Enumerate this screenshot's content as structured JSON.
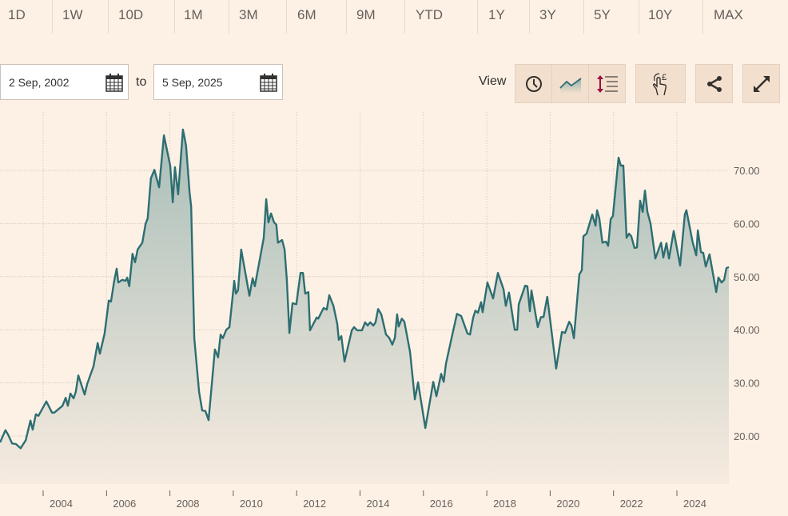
{
  "range_tabs": [
    "1D",
    "1W",
    "10D",
    "1M",
    "3M",
    "6M",
    "9M",
    "YTD",
    "1Y",
    "3Y",
    "5Y",
    "10Y",
    "MAX"
  ],
  "date_range": {
    "from": "2 Sep, 2002",
    "to_label": "to",
    "to": "5 Sep, 2025"
  },
  "toolbar": {
    "view_label": "View",
    "icons": [
      "clock-icon",
      "line-chart-icon",
      "scale-arrows-icon",
      "hand-pound-icon",
      "share-icon",
      "expand-icon"
    ]
  },
  "colors": {
    "background": "#fdf1e5",
    "line": "#2d6e72",
    "fill_top": "#a6bdb7",
    "button": "#f2dfcd"
  },
  "chart_data": {
    "type": "area",
    "xlabel": "",
    "ylabel": "",
    "xlim": [
      2002.64,
      2025.68
    ],
    "ylim": [
      11,
      80
    ],
    "grid": true,
    "y_axis_position": "right",
    "x_ticks": [
      "2004",
      "2006",
      "2008",
      "2010",
      "2012",
      "2014",
      "2016",
      "2018",
      "2020",
      "2022",
      "2024"
    ],
    "y_ticks": [
      "20.00",
      "30.00",
      "40.00",
      "50.00",
      "60.00",
      "70.00"
    ],
    "series": [
      {
        "x": [
          2002.64,
          2002.81,
          2002.89,
          2003.02,
          2003.14,
          2003.29,
          2003.45,
          2003.6,
          2003.67,
          2003.77,
          2003.85,
          2004.1,
          2004.28,
          2004.35,
          2004.61,
          2004.71,
          2004.78,
          2004.86,
          2004.96,
          2005.03,
          2005.11,
          2005.31,
          2005.39,
          2005.59,
          2005.72,
          2005.79,
          2005.94,
          2006.07,
          2006.14,
          2006.24,
          2006.32,
          2006.37,
          2006.5,
          2006.6,
          2006.65,
          2006.72,
          2006.82,
          2006.9,
          2006.98,
          2007.13,
          2007.23,
          2007.3,
          2007.4,
          2007.51,
          2007.66,
          2007.81,
          2008.01,
          2008.09,
          2008.16,
          2008.26,
          2008.41,
          2008.51,
          2008.62,
          2008.67,
          2008.77,
          2008.92,
          2009.02,
          2009.12,
          2009.22,
          2009.42,
          2009.52,
          2009.6,
          2009.67,
          2009.78,
          2009.88,
          2010.03,
          2010.08,
          2010.15,
          2010.25,
          2010.51,
          2010.61,
          2010.68,
          2010.96,
          2011.04,
          2011.11,
          2011.19,
          2011.29,
          2011.36,
          2011.41,
          2011.54,
          2011.62,
          2011.69,
          2011.77,
          2011.87,
          2011.99,
          2012.12,
          2012.2,
          2012.27,
          2012.37,
          2012.42,
          2012.63,
          2012.68,
          2012.85,
          2012.95,
          2013.03,
          2013.16,
          2013.28,
          2013.33,
          2013.41,
          2013.51,
          2013.74,
          2013.81,
          2013.91,
          2014.06,
          2014.16,
          2014.24,
          2014.32,
          2014.42,
          2014.49,
          2014.57,
          2014.67,
          2014.82,
          2014.92,
          2015.02,
          2015.1,
          2015.17,
          2015.22,
          2015.32,
          2015.4,
          2015.58,
          2015.73,
          2015.83,
          2016.06,
          2016.18,
          2016.31,
          2016.41,
          2016.56,
          2016.64,
          2016.71,
          2016.89,
          2017.06,
          2017.19,
          2017.39,
          2017.47,
          2017.57,
          2017.64,
          2017.72,
          2017.82,
          2017.87,
          2018.02,
          2018.2,
          2018.35,
          2018.53,
          2018.6,
          2018.7,
          2018.88,
          2018.96,
          2019.01,
          2019.21,
          2019.28,
          2019.36,
          2019.41,
          2019.61,
          2019.71,
          2019.79,
          2019.91,
          2020.19,
          2020.37,
          2020.47,
          2020.6,
          2020.67,
          2020.75,
          2020.92,
          2021.0,
          2021.05,
          2021.15,
          2021.33,
          2021.43,
          2021.48,
          2021.55,
          2021.65,
          2021.76,
          2021.83,
          2021.91,
          2021.98,
          2022.16,
          2022.23,
          2022.31,
          2022.41,
          2022.49,
          2022.56,
          2022.66,
          2022.74,
          2022.84,
          2022.92,
          2022.99,
          2023.07,
          2023.17,
          2023.32,
          2023.5,
          2023.57,
          2023.67,
          2023.75,
          2023.9,
          2024.1,
          2024.25,
          2024.3,
          2024.5,
          2024.61,
          2024.66,
          2024.76,
          2024.83,
          2024.91,
          2025.03,
          2025.24,
          2025.31,
          2025.41,
          2025.49,
          2025.56,
          2025.64
        ],
        "y": [
          18.8,
          21.1,
          20.3,
          18.6,
          18.5,
          17.7,
          19.2,
          22.9,
          21.2,
          24.1,
          23.8,
          26.5,
          24.4,
          24.4,
          25.7,
          27.2,
          25.7,
          28.0,
          27.1,
          28.3,
          31.4,
          27.8,
          29.8,
          33.1,
          37.5,
          35.5,
          39.3,
          45.5,
          45.3,
          49.1,
          51.5,
          48.9,
          49.4,
          49.2,
          49.8,
          48.2,
          54.3,
          52.7,
          55.1,
          56.4,
          59.9,
          61.0,
          68.5,
          70.1,
          66.8,
          76.6,
          70.9,
          64.0,
          70.6,
          65.5,
          77.7,
          74.7,
          65.9,
          63.2,
          38.4,
          28.3,
          24.8,
          24.7,
          23.0,
          36.3,
          34.8,
          39.1,
          38.4,
          40.0,
          40.5,
          49.2,
          46.8,
          47.4,
          55.1,
          46.4,
          49.7,
          48.2,
          57.3,
          64.6,
          60.2,
          61.9,
          60.2,
          59.8,
          56.4,
          56.9,
          55.1,
          49.4,
          39.4,
          45.0,
          44.8,
          50.7,
          50.7,
          46.8,
          47.1,
          39.9,
          42.3,
          42.1,
          44.1,
          43.8,
          46.5,
          44.5,
          41.1,
          38.1,
          38.8,
          34.0,
          39.9,
          40.5,
          39.9,
          39.9,
          41.4,
          40.8,
          41.4,
          40.8,
          41.4,
          43.9,
          42.9,
          39.1,
          38.5,
          37.2,
          38.5,
          42.9,
          40.6,
          42.1,
          41.5,
          35.8,
          26.9,
          30.1,
          21.5,
          25.6,
          30.2,
          27.5,
          31.7,
          30.2,
          33.6,
          38.5,
          43.0,
          42.6,
          39.3,
          39.1,
          42.3,
          43.6,
          43.2,
          45.2,
          43.3,
          48.9,
          45.9,
          50.7,
          47.6,
          44.5,
          47.0,
          40.0,
          40.0,
          44.8,
          48.3,
          48.2,
          43.5,
          47.4,
          40.5,
          42.4,
          42.4,
          46.2,
          32.7,
          39.6,
          39.4,
          41.5,
          40.8,
          38.4,
          50.4,
          51.2,
          57.6,
          58.1,
          61.7,
          59.6,
          62.5,
          61.0,
          56.4,
          56.6,
          55.8,
          60.8,
          61.4,
          72.4,
          70.9,
          70.9,
          57.3,
          58.1,
          57.6,
          55.4,
          55.5,
          64.3,
          62.2,
          66.2,
          62.2,
          59.9,
          53.4,
          56.4,
          53.6,
          56.3,
          53.4,
          58.6,
          52.1,
          61.7,
          62.5,
          56.4,
          54.0,
          58.7,
          54.6,
          54.5,
          51.9,
          54.2,
          47.1,
          49.8,
          48.9,
          49.4,
          51.6,
          51.8
        ]
      }
    ]
  }
}
